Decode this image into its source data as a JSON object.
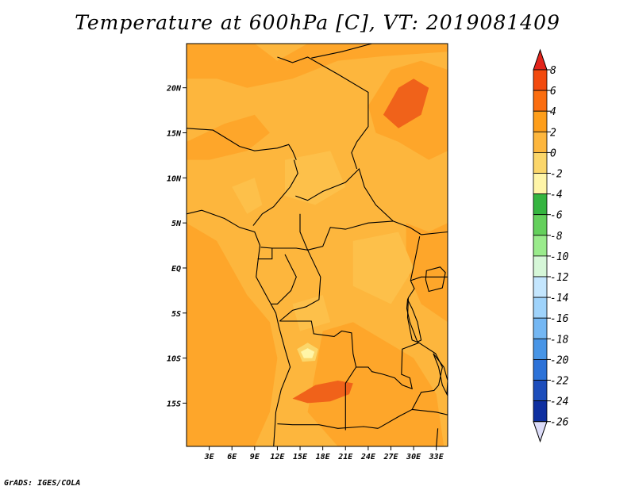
{
  "title": "Temperature at 600hPa [C], VT: 2019081409",
  "credit": "GrADS: IGES/COLA",
  "map": {
    "lat_labels": [
      "20N",
      "15N",
      "10N",
      "5N",
      "EQ",
      "5S",
      "10S",
      "15S"
    ],
    "lat_values": [
      20,
      15,
      10,
      5,
      0,
      -5,
      -10,
      -15
    ],
    "lon_labels": [
      "3E",
      "6E",
      "9E",
      "12E",
      "15E",
      "18E",
      "21E",
      "24E",
      "27E",
      "30E",
      "33E"
    ],
    "lon_values": [
      3,
      6,
      9,
      12,
      15,
      18,
      21,
      24,
      27,
      30,
      33
    ],
    "lon_range": [
      0,
      34.5
    ],
    "lat_range": [
      -19.8,
      24.9
    ]
  },
  "colorbar": {
    "labels": [
      "8",
      "6",
      "4",
      "2",
      "0",
      "-2",
      "-4",
      "-6",
      "-8",
      "-10",
      "-12",
      "-14",
      "-16",
      "-18",
      "-20",
      "-22",
      "-24",
      "-26"
    ],
    "colors": [
      "#e3251b",
      "#f24a0e",
      "#fb6d0f",
      "#fe9e1a",
      "#fdb63d",
      "#fbd66a",
      "#fff5a8",
      "#35b540",
      "#64d05c",
      "#9aeb8c",
      "#d6f7d8",
      "#c4e6fe",
      "#9fd3fb",
      "#74b7f3",
      "#4895e6",
      "#2c72d8",
      "#1c4dbb",
      "#0e2fa0",
      "#0a1773"
    ],
    "top_color": "#e3251b",
    "bottom_color": "#dcdcf8"
  },
  "chart_data": {
    "type": "heatmap",
    "title": "Temperature at 600hPa [C], VT: 2019081409",
    "field": "Temperature at 600hPa",
    "units": "C",
    "valid_time": "2019081409",
    "x": [
      3,
      6,
      9,
      12,
      15,
      18,
      21,
      24,
      27,
      30,
      33
    ],
    "y": [
      20,
      15,
      10,
      5,
      0,
      -5,
      -10,
      -15
    ],
    "xlim": [
      0,
      34.5
    ],
    "ylim": [
      -19.8,
      24.9
    ],
    "levels": [
      -26,
      -24,
      -22,
      -20,
      -18,
      -16,
      -14,
      -12,
      -10,
      -8,
      -6,
      -4,
      -2,
      0,
      2,
      4,
      6,
      8
    ],
    "dominant_range": [
      0,
      4
    ],
    "regions": [
      {
        "range": [
          4,
          6
        ],
        "lon": [
          25,
          32
        ],
        "lat": [
          16,
          21
        ]
      },
      {
        "range": [
          4,
          6
        ],
        "lon": [
          13,
          22
        ],
        "lat": [
          -15,
          -12
        ]
      },
      {
        "range": [
          -2,
          0
        ],
        "lon": [
          15,
          17
        ],
        "lat": [
          -10,
          -9
        ]
      }
    ]
  }
}
